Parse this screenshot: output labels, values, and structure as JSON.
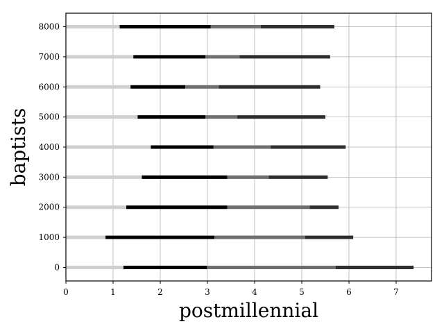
{
  "chart_data": {
    "type": "bar",
    "orientation": "horizontal-stacked",
    "xlabel": "postmillennial",
    "ylabel": "baptists",
    "xlim": [
      0,
      7.75
    ],
    "ylim": [
      -450,
      8450
    ],
    "grid": "x and y",
    "x_ticks": [
      "0",
      "1",
      "2",
      "3",
      "4",
      "5",
      "6",
      "7"
    ],
    "categories": [
      "0",
      "1000",
      "2000",
      "3000",
      "4000",
      "5000",
      "6000",
      "7000",
      "8000"
    ],
    "category_values": [
      0,
      1000,
      2000,
      3000,
      4000,
      5000,
      6000,
      7000,
      8000
    ],
    "segment_colors": [
      "#d0d0d0",
      "#000000",
      "#6e6e6e",
      "#2e2e2e"
    ],
    "series": [
      {
        "values": [
          1.22,
          0.84,
          1.28,
          1.61,
          1.8,
          1.52,
          1.37,
          1.43,
          1.14
        ]
      },
      {
        "values": [
          1.77,
          2.31,
          2.14,
          1.81,
          1.33,
          1.44,
          1.16,
          1.53,
          1.93
        ]
      },
      {
        "values": [
          2.73,
          1.92,
          1.75,
          0.88,
          1.21,
          0.67,
          0.71,
          0.72,
          1.06
        ]
      },
      {
        "values": [
          1.65,
          1.02,
          0.61,
          1.25,
          1.59,
          1.87,
          2.15,
          1.92,
          1.56
        ]
      }
    ]
  }
}
